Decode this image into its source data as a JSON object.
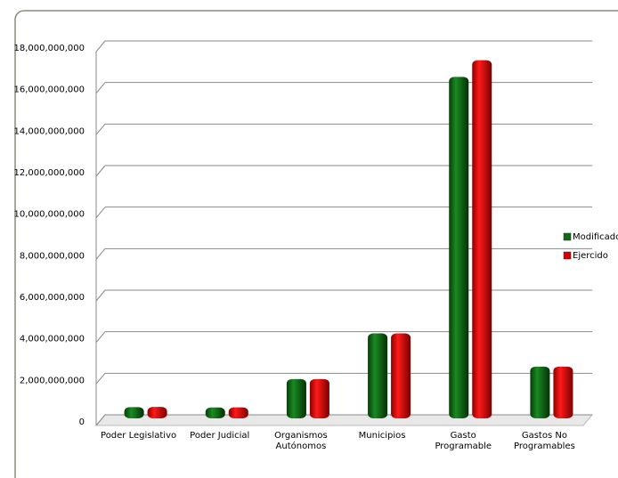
{
  "chart_data": {
    "type": "bar",
    "categories": [
      "Poder Legislativo",
      "Poder Judicial",
      "Organismos Autónomos",
      "Municipios",
      "Gasto Programable",
      "Gastos No Programables"
    ],
    "series": [
      {
        "name": "Modificado",
        "color": "#0d6b12",
        "values": [
          200000000,
          180000000,
          1550000000,
          3750000000,
          16100000000,
          2150000000
        ]
      },
      {
        "name": "Ejercido",
        "color": "#d40000",
        "values": [
          210000000,
          190000000,
          1550000000,
          3750000000,
          16900000000,
          2150000000
        ]
      }
    ],
    "ylim": [
      0,
      18000000000
    ],
    "yticks": [
      {
        "value": 0,
        "label": "0"
      },
      {
        "value": 2000000000,
        "label": "2,000,000,000"
      },
      {
        "value": 4000000000,
        "label": "4,000,000,000"
      },
      {
        "value": 6000000000,
        "label": "6,000,000,000"
      },
      {
        "value": 8000000000,
        "label": "8,000,000,000"
      },
      {
        "value": 10000000000,
        "label": "10,000,000,000"
      },
      {
        "value": 12000000000,
        "label": "12,000,000,000"
      },
      {
        "value": 14000000000,
        "label": "14,000,000,000"
      },
      {
        "value": 16000000000,
        "label": "16,000,000,000"
      },
      {
        "value": 18000000000,
        "label": "18,000,000,000"
      }
    ],
    "grid": true,
    "legend": "right"
  }
}
